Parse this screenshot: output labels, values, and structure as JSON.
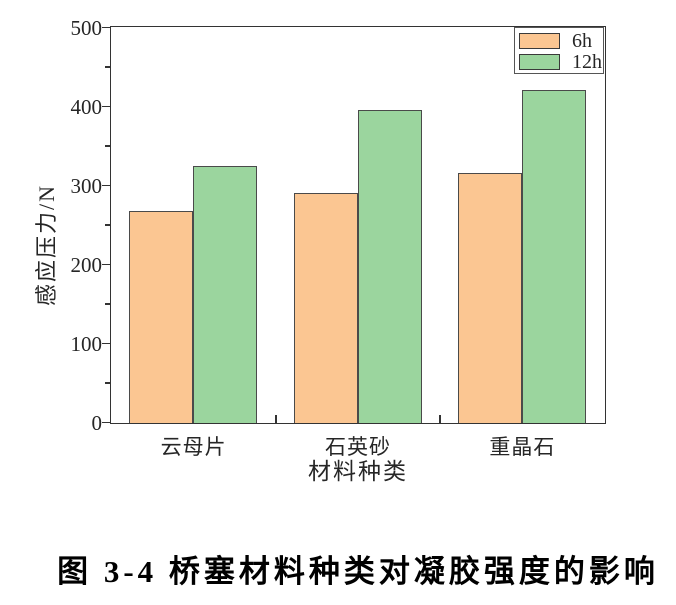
{
  "figure": {
    "caption": "图 3-4 桥塞材料种类对凝胶强度的影响"
  },
  "chart_data": {
    "type": "bar",
    "title": "",
    "categories": [
      "云母片",
      "石英砂",
      "重晶石"
    ],
    "series": [
      {
        "name": "6h",
        "values": [
          268,
          291,
          316
        ],
        "color": "#FBC692"
      },
      {
        "name": "12h",
        "values": [
          325,
          396,
          422
        ],
        "color": "#9BD59E"
      }
    ],
    "xlabel": "材料种类",
    "ylabel": "感应压力/N",
    "ylim": [
      0,
      500
    ],
    "yticks": [
      0,
      100,
      200,
      300,
      400,
      500
    ],
    "y_minor_step": 50,
    "x_minor_positions": [
      0.3333,
      0.6667
    ],
    "grid": false,
    "legend_position": "top-right",
    "bar_edge_color": "#4a4a4a",
    "axis_color": "#333333"
  }
}
